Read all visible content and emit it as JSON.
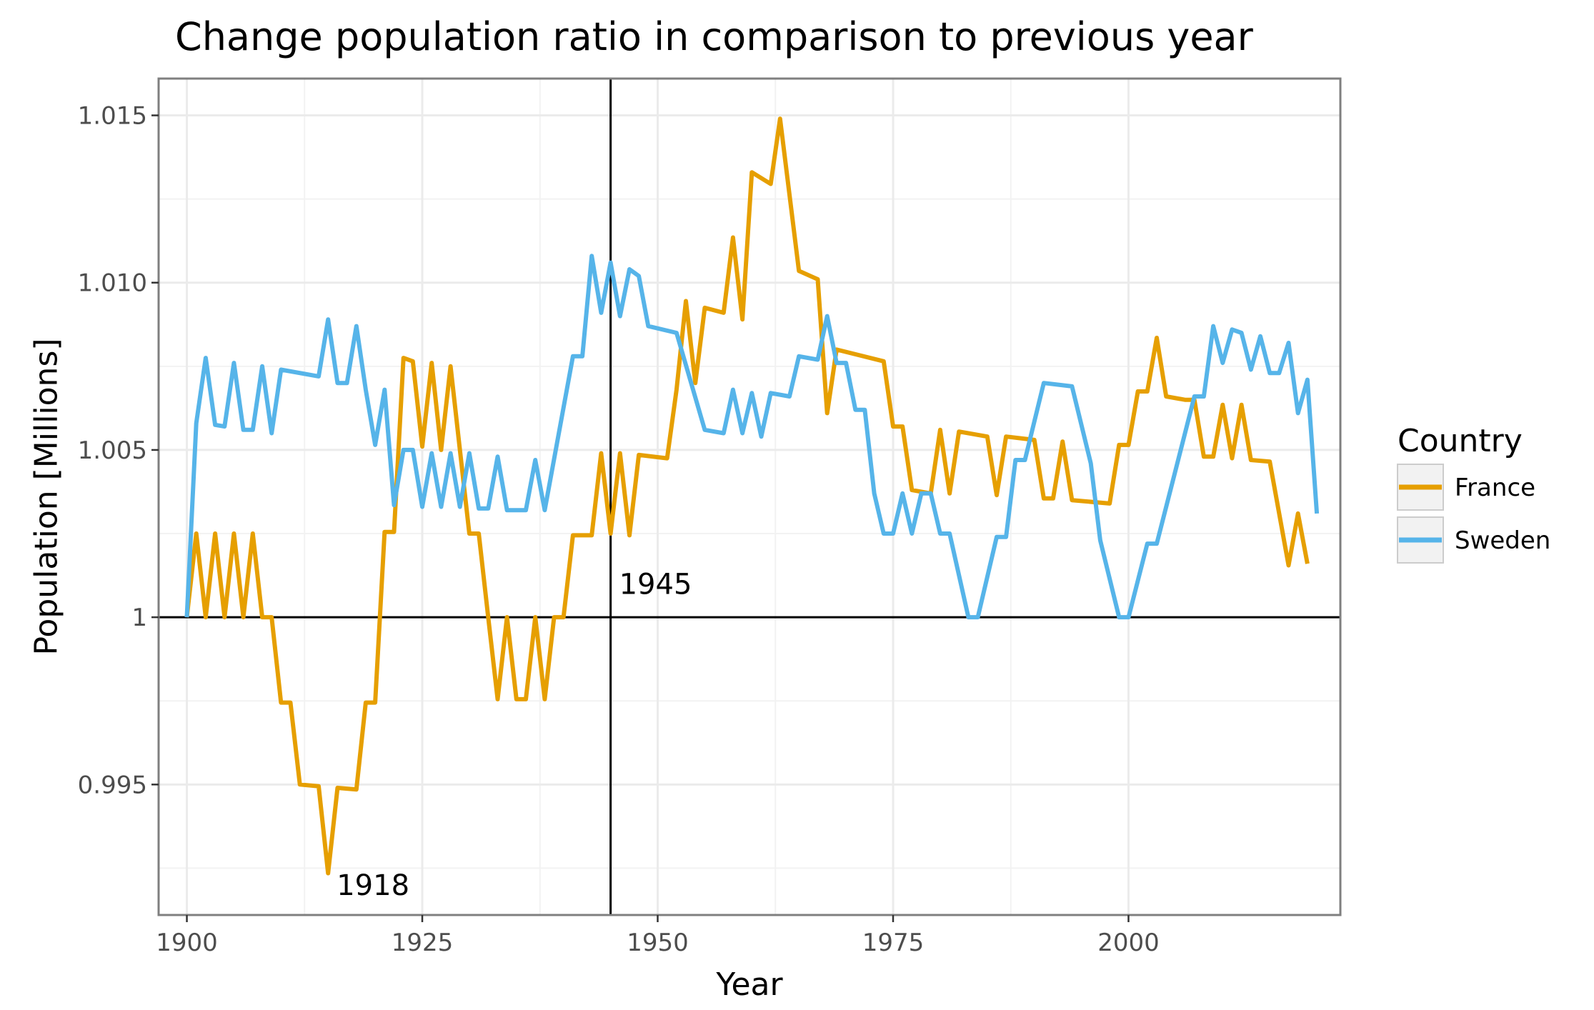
{
  "chart_data": {
    "type": "line",
    "title": "Change population ratio in comparison to previous year",
    "xlabel": "Year",
    "ylabel": "Population [Millions]",
    "xlim": [
      1897,
      2022.5
    ],
    "ylim": [
      0.9911,
      1.0161
    ],
    "x_ticks": [
      1900,
      1925,
      1950,
      1975,
      2000
    ],
    "x_tick_labels": [
      "1900",
      "1925",
      "1950",
      "1975",
      "2000"
    ],
    "y_ticks": [
      0.995,
      1.0,
      1.005,
      1.01,
      1.015
    ],
    "y_tick_labels": [
      "0.995",
      "1",
      "1.005",
      "1.010",
      "1.015"
    ],
    "grid": true,
    "legend": {
      "title": "Country",
      "placement": "right"
    },
    "reference_lines": {
      "vertical_x": 1945,
      "horizontal_y": 1.0
    },
    "annotations": [
      {
        "text": "1945",
        "x": 1945,
        "y": 1.001
      },
      {
        "text": "1918",
        "x": 1915,
        "y": 0.992
      }
    ],
    "series": [
      {
        "name": "France",
        "color": "#E69F00",
        "points": [
          [
            1900,
            1.0
          ],
          [
            1901,
            1.0025
          ],
          [
            1902,
            1.0
          ],
          [
            1903,
            1.0025
          ],
          [
            1904,
            1.0
          ],
          [
            1905,
            1.0025
          ],
          [
            1906,
            1.0
          ],
          [
            1907,
            1.0025
          ],
          [
            1908,
            1.0
          ],
          [
            1909,
            1.0
          ],
          [
            1910,
            0.99745
          ],
          [
            1911,
            0.99745
          ],
          [
            1912,
            0.995
          ],
          [
            1914,
            0.99495
          ],
          [
            1915,
            0.99235
          ],
          [
            1916,
            0.9949
          ],
          [
            1918,
            0.99485
          ],
          [
            1919,
            0.99745
          ],
          [
            1920,
            0.99745
          ],
          [
            1921,
            1.00255
          ],
          [
            1922,
            1.00255
          ],
          [
            1923,
            1.00775
          ],
          [
            1924,
            1.00765
          ],
          [
            1925,
            1.0051
          ],
          [
            1926,
            1.0076
          ],
          [
            1927,
            1.005
          ],
          [
            1928,
            1.0075
          ],
          [
            1929,
            1.005
          ],
          [
            1930,
            1.0025
          ],
          [
            1931,
            1.0025
          ],
          [
            1932,
            1.0
          ],
          [
            1933,
            0.99755
          ],
          [
            1934,
            1.0
          ],
          [
            1935,
            0.99755
          ],
          [
            1936,
            0.99755
          ],
          [
            1937,
            1.0
          ],
          [
            1938,
            0.99755
          ],
          [
            1939,
            1.0
          ],
          [
            1940,
            1.0
          ],
          [
            1941,
            1.00245
          ],
          [
            1943,
            1.00245
          ],
          [
            1944,
            1.0049
          ],
          [
            1945,
            1.0025
          ],
          [
            1946,
            1.0049
          ],
          [
            1947,
            1.00245
          ],
          [
            1948,
            1.00485
          ],
          [
            1951,
            1.00475
          ],
          [
            1952,
            1.0068
          ],
          [
            1953,
            1.00945
          ],
          [
            1954,
            1.007
          ],
          [
            1955,
            1.00925
          ],
          [
            1957,
            1.0091
          ],
          [
            1958,
            1.01135
          ],
          [
            1959,
            1.0089
          ],
          [
            1960,
            1.0133
          ],
          [
            1962,
            1.01295
          ],
          [
            1963,
            1.0149
          ],
          [
            1965,
            1.01035
          ],
          [
            1967,
            1.0101
          ],
          [
            1968,
            1.0061
          ],
          [
            1969,
            1.008
          ],
          [
            1974,
            1.00765
          ],
          [
            1975,
            1.0057
          ],
          [
            1976,
            1.0057
          ],
          [
            1977,
            1.0038
          ],
          [
            1979,
            1.0037
          ],
          [
            1980,
            1.0056
          ],
          [
            1981,
            1.0037
          ],
          [
            1982,
            1.00555
          ],
          [
            1985,
            1.0054
          ],
          [
            1986,
            1.00365
          ],
          [
            1987,
            1.0054
          ],
          [
            1990,
            1.0053
          ],
          [
            1991,
            1.00355
          ],
          [
            1992,
            1.00355
          ],
          [
            1993,
            1.00525
          ],
          [
            1994,
            1.0035
          ],
          [
            1998,
            1.0034
          ],
          [
            1999,
            1.00515
          ],
          [
            2000,
            1.00515
          ],
          [
            2001,
            1.00675
          ],
          [
            2002,
            1.00675
          ],
          [
            2003,
            1.00835
          ],
          [
            2004,
            1.0066
          ],
          [
            2006,
            1.0065
          ],
          [
            2007,
            1.0065
          ],
          [
            2008,
            1.0048
          ],
          [
            2009,
            1.0048
          ],
          [
            2010,
            1.00635
          ],
          [
            2011,
            1.00475
          ],
          [
            2012,
            1.00635
          ],
          [
            2013,
            1.0047
          ],
          [
            2015,
            1.00465
          ],
          [
            2017,
            1.00155
          ],
          [
            2018,
            1.0031
          ],
          [
            2019,
            1.0016
          ]
        ]
      },
      {
        "name": "Sweden",
        "color": "#56B4E9",
        "points": [
          [
            1900,
            1.0
          ],
          [
            1901,
            1.0058
          ],
          [
            1902,
            1.00775
          ],
          [
            1903,
            1.00575
          ],
          [
            1904,
            1.0057
          ],
          [
            1905,
            1.0076
          ],
          [
            1906,
            1.0056
          ],
          [
            1907,
            1.0056
          ],
          [
            1908,
            1.0075
          ],
          [
            1909,
            1.0055
          ],
          [
            1910,
            1.0074
          ],
          [
            1914,
            1.0072
          ],
          [
            1915,
            1.0089
          ],
          [
            1916,
            1.007
          ],
          [
            1917,
            1.007
          ],
          [
            1918,
            1.0087
          ],
          [
            1919,
            1.0068
          ],
          [
            1920,
            1.00515
          ],
          [
            1921,
            1.0068
          ],
          [
            1922,
            1.00335
          ],
          [
            1923,
            1.005
          ],
          [
            1924,
            1.005
          ],
          [
            1925,
            1.0033
          ],
          [
            1926,
            1.0049
          ],
          [
            1927,
            1.0033
          ],
          [
            1928,
            1.0049
          ],
          [
            1929,
            1.0033
          ],
          [
            1930,
            1.0049
          ],
          [
            1931,
            1.00325
          ],
          [
            1932,
            1.00325
          ],
          [
            1933,
            1.0048
          ],
          [
            1934,
            1.0032
          ],
          [
            1936,
            1.0032
          ],
          [
            1937,
            1.0047
          ],
          [
            1938,
            1.0032
          ],
          [
            1941,
            1.0078
          ],
          [
            1942,
            1.0078
          ],
          [
            1943,
            1.0108
          ],
          [
            1944,
            1.0091
          ],
          [
            1945,
            1.0106
          ],
          [
            1946,
            1.009
          ],
          [
            1947,
            1.0104
          ],
          [
            1948,
            1.0102
          ],
          [
            1949,
            1.0087
          ],
          [
            1952,
            1.0085
          ],
          [
            1955,
            1.0056
          ],
          [
            1957,
            1.0055
          ],
          [
            1958,
            1.0068
          ],
          [
            1959,
            1.0055
          ],
          [
            1960,
            1.0067
          ],
          [
            1961,
            1.0054
          ],
          [
            1962,
            1.0067
          ],
          [
            1964,
            1.0066
          ],
          [
            1965,
            1.0078
          ],
          [
            1967,
            1.0077
          ],
          [
            1968,
            1.009
          ],
          [
            1969,
            1.0076
          ],
          [
            1970,
            1.0076
          ],
          [
            1971,
            1.0062
          ],
          [
            1972,
            1.0062
          ],
          [
            1973,
            1.0037
          ],
          [
            1974,
            1.0025
          ],
          [
            1975,
            1.0025
          ],
          [
            1976,
            1.0037
          ],
          [
            1977,
            1.0025
          ],
          [
            1978,
            1.0037
          ],
          [
            1979,
            1.0037
          ],
          [
            1980,
            1.0025
          ],
          [
            1981,
            1.0025
          ],
          [
            1983,
            1.0
          ],
          [
            1984,
            1.0
          ],
          [
            1986,
            1.0024
          ],
          [
            1987,
            1.0024
          ],
          [
            1988,
            1.0047
          ],
          [
            1989,
            1.0047
          ],
          [
            1991,
            1.007
          ],
          [
            1994,
            1.0069
          ],
          [
            1996,
            1.0046
          ],
          [
            1997,
            1.0023
          ],
          [
            1999,
            1.0
          ],
          [
            2000,
            1.0
          ],
          [
            2002,
            1.0022
          ],
          [
            2003,
            1.0022
          ],
          [
            2005,
            1.0044
          ],
          [
            2007,
            1.0066
          ],
          [
            2008,
            1.0066
          ],
          [
            2009,
            1.0087
          ],
          [
            2010,
            1.0076
          ],
          [
            2011,
            1.0086
          ],
          [
            2012,
            1.0085
          ],
          [
            2013,
            1.0074
          ],
          [
            2014,
            1.0084
          ],
          [
            2015,
            1.0073
          ],
          [
            2016,
            1.0073
          ],
          [
            2017,
            1.0082
          ],
          [
            2018,
            1.0061
          ],
          [
            2019,
            1.0071
          ],
          [
            2020,
            1.0031
          ]
        ]
      }
    ]
  }
}
